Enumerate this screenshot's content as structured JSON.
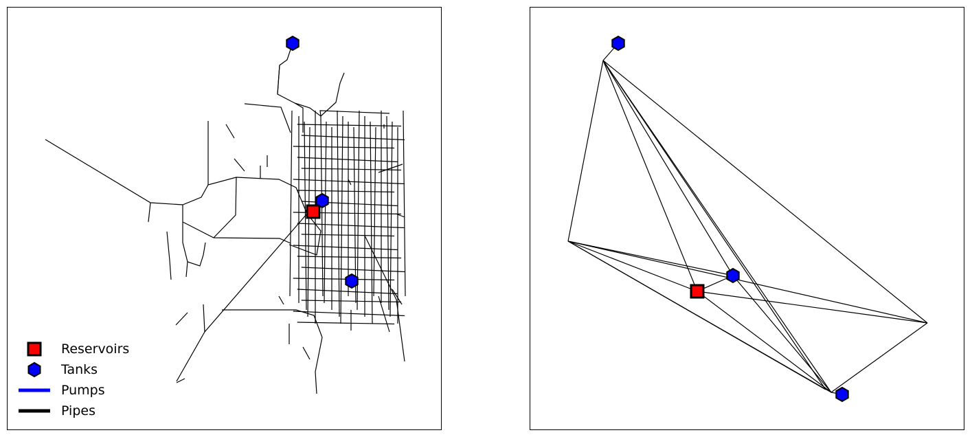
{
  "legend": {
    "items": [
      {
        "key": "reservoir",
        "label": "Reservoirs"
      },
      {
        "key": "tank",
        "label": "Tanks"
      },
      {
        "key": "pump",
        "label": "Pumps"
      },
      {
        "key": "pipe",
        "label": "Pipes"
      }
    ]
  },
  "colors": {
    "reservoir_fill": "#ff0000",
    "tank_fill": "#0000ff",
    "pump_line": "#0000ff",
    "pipe_line": "#000000"
  },
  "icons": {
    "reservoir": "red-square-marker",
    "tank": "blue-hexagon-marker"
  }
}
